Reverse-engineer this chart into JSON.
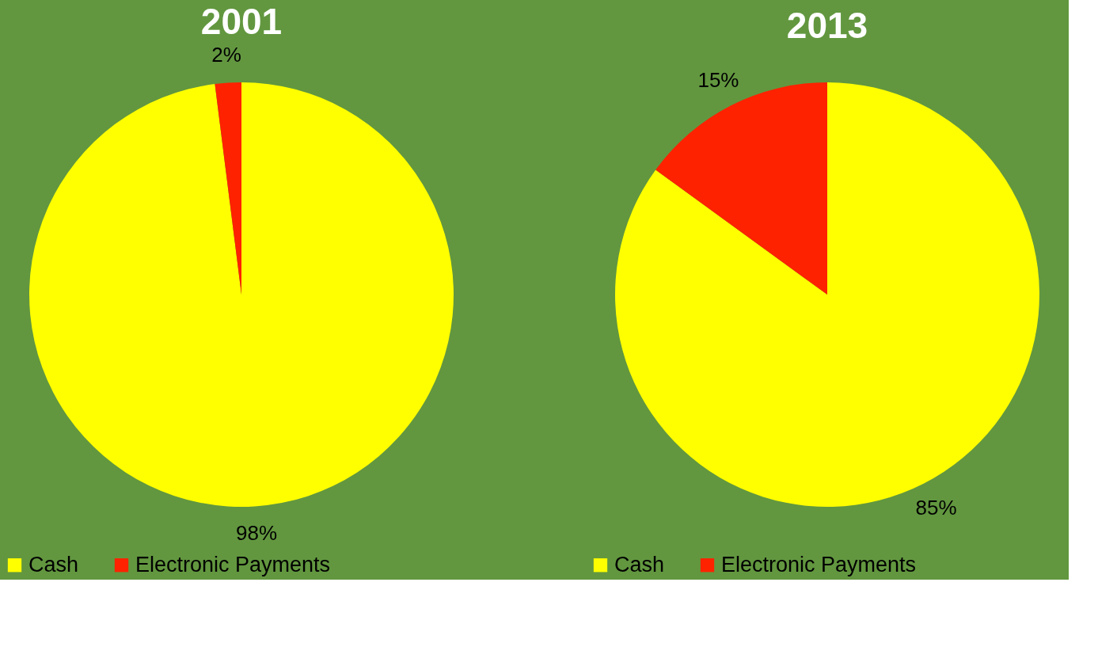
{
  "chart_data": [
    {
      "type": "pie",
      "title": "2001",
      "categories": [
        "Cash",
        "Electronic Payments"
      ],
      "values": [
        98,
        2
      ],
      "colors": [
        "#ffff00",
        "#ff2200"
      ],
      "value_labels": [
        "98%",
        "2%"
      ],
      "legend": "bottom"
    },
    {
      "type": "pie",
      "title": "2013",
      "categories": [
        "Cash",
        "Electronic Payments"
      ],
      "values": [
        85,
        15
      ],
      "colors": [
        "#ffff00",
        "#ff2200"
      ],
      "value_labels": [
        "85%",
        "15%"
      ],
      "legend": "bottom"
    }
  ]
}
